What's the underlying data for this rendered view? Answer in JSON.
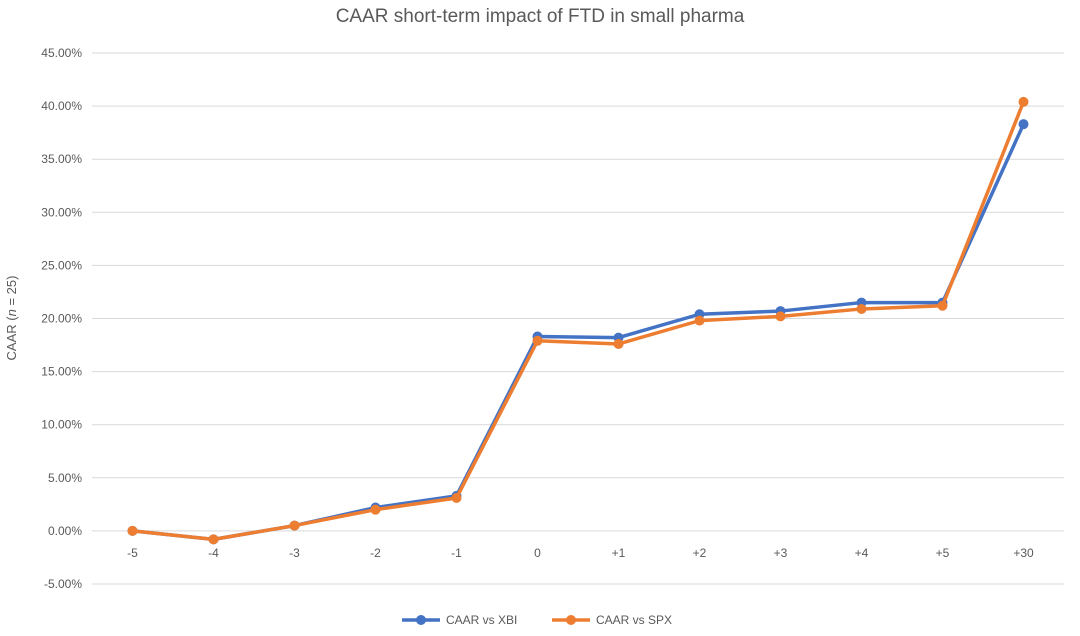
{
  "chart_data": {
    "type": "line",
    "title": "CAAR short-term impact of FTD in small pharma",
    "xlabel": "",
    "ylabel_prefix": "CAAR (",
    "ylabel_italic": "n",
    "ylabel_suffix": " = 25)",
    "categories": [
      "-5",
      "-4",
      "-3",
      "-2",
      "-1",
      "0",
      "+1",
      "+2",
      "+3",
      "+4",
      "+5",
      "+30"
    ],
    "y_ticks": [
      "-5.00%",
      "0.00%",
      "5.00%",
      "10.00%",
      "15.00%",
      "20.00%",
      "25.00%",
      "30.00%",
      "35.00%",
      "40.00%",
      "45.00%"
    ],
    "ylim": [
      -5,
      45
    ],
    "y_unit": "%",
    "grid": true,
    "legend_position": "bottom",
    "series": [
      {
        "name": "CAAR vs XBI",
        "color": "#4472C4",
        "values": [
          0.0,
          -0.8,
          0.5,
          2.2,
          3.3,
          18.3,
          18.2,
          20.4,
          20.7,
          21.5,
          21.5,
          38.3
        ]
      },
      {
        "name": "CAAR vs SPX",
        "color": "#ED7D31",
        "values": [
          0.0,
          -0.8,
          0.5,
          2.0,
          3.1,
          17.9,
          17.6,
          19.8,
          20.2,
          20.9,
          21.2,
          40.4
        ]
      }
    ]
  }
}
